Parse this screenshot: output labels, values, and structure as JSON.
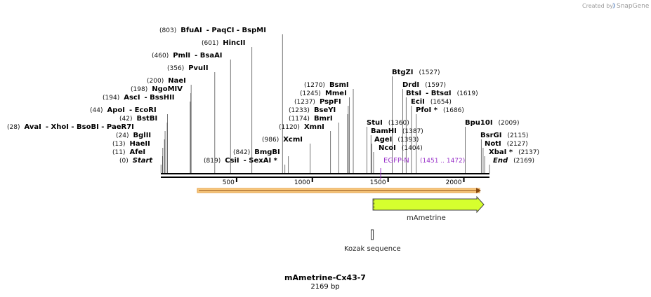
{
  "credit": {
    "prefix": "Created by",
    "brand": "SnapGene"
  },
  "map": {
    "length": 2169,
    "ticks": [
      500,
      1000,
      1500,
      2000
    ]
  },
  "sites": [
    {
      "pos": "(0)",
      "name": "Start",
      "sep": "",
      "name2": "",
      "loc": 1,
      "italic": true
    },
    {
      "pos": "(11)",
      "name": "AfeI",
      "sep": "",
      "name2": "",
      "loc": 11
    },
    {
      "pos": "(13)",
      "name": "HaeII",
      "sep": "",
      "name2": "",
      "loc": 13
    },
    {
      "pos": "(24)",
      "name": "BglII",
      "sep": "",
      "name2": "",
      "loc": 24
    },
    {
      "pos": "(28)",
      "name": "AvaI",
      "sep": "- XhoI   - BsoBI   - PaeR7I",
      "name2": "",
      "loc": 28
    },
    {
      "pos": "(42)",
      "name": "BstBI",
      "sep": "",
      "name2": "",
      "loc": 42
    },
    {
      "pos": "(44)",
      "name": "ApoI",
      "sep": "- EcoRI",
      "name2": "",
      "loc": 44
    },
    {
      "pos": "(194)",
      "name": "AscI",
      "sep": "- BssHII",
      "name2": "",
      "loc": 194
    },
    {
      "pos": "(198)",
      "name": "NgoMIV",
      "sep": "",
      "name2": "",
      "loc": 198
    },
    {
      "pos": "(200)",
      "name": "NaeI",
      "sep": "",
      "name2": "",
      "loc": 200
    },
    {
      "pos": "(356)",
      "name": "PvuII",
      "sep": "",
      "name2": "",
      "loc": 356
    },
    {
      "pos": "(460)",
      "name": "PmlI",
      "sep": "- BsaAI",
      "name2": "",
      "loc": 460
    },
    {
      "pos": "(601)",
      "name": "HincII",
      "sep": "",
      "name2": "",
      "loc": 601
    },
    {
      "pos": "(803)",
      "name": "BfuAI",
      "sep": "- PaqCI   - BspMI",
      "name2": "",
      "loc": 803
    },
    {
      "pos": "(819)",
      "name": "CsiI",
      "sep": "- SexAI *",
      "name2": "",
      "loc": 819
    },
    {
      "pos": "(842)",
      "name": "BmgBI",
      "sep": "",
      "name2": "",
      "loc": 842
    },
    {
      "pos": "(986)",
      "name": "XcmI",
      "sep": "",
      "name2": "",
      "loc": 986
    },
    {
      "pos": "(1120)",
      "name": "XmnI",
      "sep": "",
      "name2": "",
      "loc": 1120
    },
    {
      "pos": "(1174)",
      "name": "BmrI",
      "sep": "",
      "name2": "",
      "loc": 1174
    },
    {
      "pos": "(1233)",
      "name": "BseYI",
      "sep": "",
      "name2": "",
      "loc": 1233
    },
    {
      "pos": "(1237)",
      "name": "PspFI",
      "sep": "",
      "name2": "",
      "loc": 1237
    },
    {
      "pos": "(1245)",
      "name": "MmeI",
      "sep": "",
      "name2": "",
      "loc": 1245
    },
    {
      "pos": "(1270)",
      "name": "BsmI",
      "sep": "",
      "name2": "",
      "loc": 1270
    },
    {
      "pos": "(1360)",
      "name": "StuI",
      "sep": "",
      "name2": "",
      "loc": 1360
    },
    {
      "pos": "(1387)",
      "name": "BamHI",
      "sep": "",
      "name2": "",
      "loc": 1387
    },
    {
      "pos": "(1393)",
      "name": "AgeI",
      "sep": "",
      "name2": "",
      "loc": 1393
    },
    {
      "pos": "(1404)",
      "name": "NcoI",
      "sep": "",
      "name2": "",
      "loc": 1404
    },
    {
      "pos": "(1527)",
      "name": "BtgZI",
      "sep": "",
      "name2": "",
      "loc": 1527
    },
    {
      "pos": "(1597)",
      "name": "DrdI",
      "sep": "",
      "name2": "",
      "loc": 1597
    },
    {
      "pos": "(1619)",
      "name": "BtsI",
      "sep": "- BtsαI",
      "name2": "",
      "loc": 1619
    },
    {
      "pos": "(1654)",
      "name": "EciI",
      "sep": "",
      "name2": "",
      "loc": 1654
    },
    {
      "pos": "(1686)",
      "name": "PfoI *",
      "sep": "",
      "name2": "",
      "loc": 1686
    },
    {
      "pos": "(2009)",
      "name": "Bpu10I",
      "sep": "",
      "name2": "",
      "loc": 2009
    },
    {
      "pos": "(2115)",
      "name": "BsrGI",
      "sep": "",
      "name2": "",
      "loc": 2115
    },
    {
      "pos": "(2127)",
      "name": "NotI",
      "sep": "",
      "name2": "",
      "loc": 2127
    },
    {
      "pos": "(2137)",
      "name": "XbaI *",
      "sep": "",
      "name2": "",
      "loc": 2137
    },
    {
      "pos": "(2169)",
      "name": "End",
      "sep": "",
      "name2": "",
      "loc": 2169,
      "italic": true
    }
  ],
  "primer": {
    "name": "EGFP-N",
    "range": "(1451 .. 1472)",
    "start": 1451,
    "end": 1472
  },
  "features": {
    "mametrine": {
      "label": "mAmetrine",
      "start": 1400,
      "end": 2169,
      "color": "#d6ff2e"
    },
    "kozak": {
      "label": "Kozak sequence",
      "start": 1393,
      "end": 1403
    }
  },
  "colors": {
    "backbone": "#000000",
    "orf": "#f2a93b",
    "primer": "#9a33c9"
  },
  "title": {
    "name": "mAmetrine-Cx43-7",
    "size": "2169 bp"
  }
}
